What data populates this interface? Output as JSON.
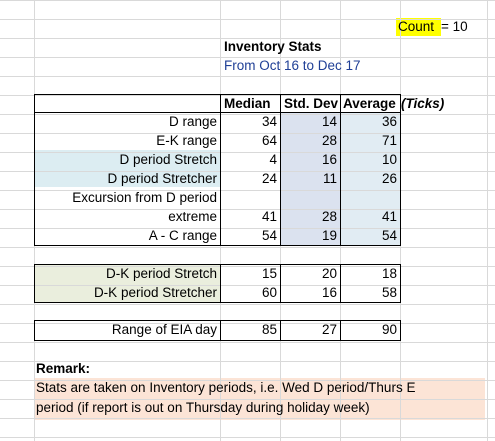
{
  "count": {
    "label": "Count",
    "suffix": " = 10"
  },
  "title": "Inventory Stats",
  "subtitle": "From Oct 16 to Dec 17",
  "headers": {
    "median": "Median",
    "std": "Std. Dev",
    "average": "Average",
    "ticks": "(Ticks)"
  },
  "rows1": [
    {
      "label": "D range",
      "median": "34",
      "std": "14",
      "avg": "36"
    },
    {
      "label": "E-K range",
      "median": "64",
      "std": "28",
      "avg": "71"
    },
    {
      "label": "D period Stretch",
      "median": "4",
      "std": "16",
      "avg": "10"
    },
    {
      "label": "D period Stretcher",
      "median": "24",
      "std": "11",
      "avg": "26"
    },
    {
      "label": "Excursion from D period",
      "label2": "extreme",
      "median": "41",
      "std": "28",
      "avg": "41"
    },
    {
      "label": "A - C range",
      "median": "54",
      "std": "19",
      "avg": "54"
    }
  ],
  "rows2": [
    {
      "label": "D-K period Stretch",
      "median": "15",
      "std": "20",
      "avg": "18"
    },
    {
      "label": "D-K period Stretcher",
      "median": "60",
      "std": "16",
      "avg": "58"
    }
  ],
  "rows3": [
    {
      "label": "Range of EIA day",
      "median": "85",
      "std": "27",
      "avg": "90"
    }
  ],
  "remark": {
    "title": "Remark:",
    "line1": "Stats are taken on Inventory periods, i.e. Wed D period/Thurs E",
    "line2": "period (if report is out on Thursday during holiday week)"
  }
}
